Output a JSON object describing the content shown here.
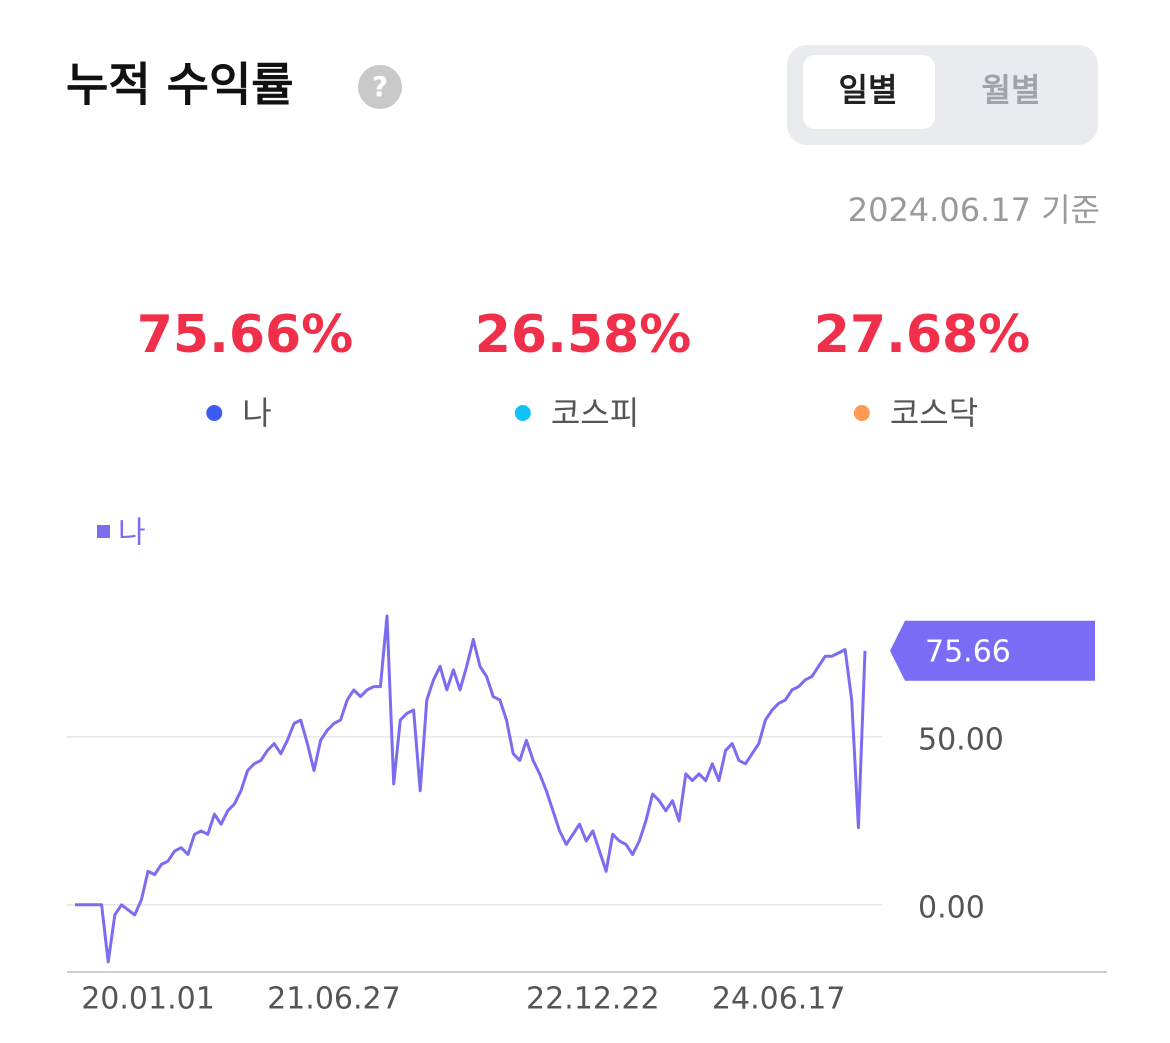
{
  "header": {
    "title": "누적 수익률",
    "help_icon": "?"
  },
  "toggle": {
    "options": [
      "일별",
      "월별"
    ],
    "active": "일별"
  },
  "as_of": "2024.06.17 기준",
  "stats": [
    {
      "value": "75.66%",
      "name": "나",
      "color": "#3d5af1"
    },
    {
      "value": "26.58%",
      "name": "코스피",
      "color": "#12c2f5"
    },
    {
      "value": "27.68%",
      "name": "코스닥",
      "color": "#ff9a52"
    }
  ],
  "chart_data": {
    "type": "line",
    "categories": [
      null,
      null,
      null,
      null,
      null,
      null,
      null,
      null,
      null,
      null,
      null,
      "20.01.01",
      null,
      null,
      null,
      null,
      null,
      null,
      null,
      null,
      null,
      null,
      null,
      null,
      null,
      null,
      null,
      null,
      null,
      null,
      null,
      null,
      null,
      null,
      null,
      null,
      null,
      null,
      null,
      "21.06.27",
      null,
      null,
      null,
      null,
      null,
      null,
      null,
      null,
      null,
      null,
      null,
      null,
      null,
      null,
      null,
      null,
      null,
      null,
      null,
      null,
      null,
      null,
      null,
      null,
      null,
      null,
      null,
      null,
      null,
      null,
      null,
      null,
      null,
      null,
      null,
      null,
      null,
      null,
      "22.12.22",
      null,
      null,
      null,
      null,
      null,
      null,
      null,
      null,
      null,
      null,
      null,
      null,
      null,
      null,
      null,
      null,
      null,
      null,
      null,
      null,
      null,
      null,
      null,
      null,
      null,
      null,
      null,
      "24.06.17",
      null,
      null,
      null,
      null,
      null,
      null,
      null,
      null,
      null,
      null,
      null,
      null,
      null
    ],
    "series": [
      {
        "name": "나",
        "color": "#7b6cf0",
        "values": [
          0,
          0,
          0,
          0,
          0,
          -17,
          -3,
          0,
          -1.5,
          -3,
          1.5,
          10,
          9,
          12,
          13,
          16,
          17,
          15,
          21,
          22,
          21,
          27,
          24,
          28,
          30,
          34,
          40,
          42,
          43,
          46,
          48,
          45,
          49,
          54,
          55,
          48,
          40,
          49,
          52,
          54,
          55,
          61,
          64,
          62,
          64,
          65,
          65,
          86,
          36,
          55,
          57,
          58,
          34,
          61,
          67,
          71,
          64,
          70,
          64,
          71,
          79,
          71,
          68,
          62,
          61,
          55,
          45,
          43,
          49,
          43,
          39,
          34,
          28,
          22,
          18,
          21,
          24,
          19,
          22,
          16,
          10,
          21,
          19,
          18,
          15,
          19,
          25,
          33,
          31,
          28,
          31,
          25,
          39,
          37,
          39,
          37,
          42,
          37,
          46,
          48,
          43,
          42,
          45,
          48,
          55,
          58,
          60,
          61,
          64,
          65,
          67,
          68,
          71,
          74,
          74,
          75,
          76,
          61,
          23,
          75.66
        ]
      }
    ],
    "ylim": [
      -20,
      90
    ],
    "yticks": [
      {
        "value": 0,
        "label": "0.00"
      },
      {
        "value": 50,
        "label": "50.00"
      }
    ],
    "grid": true,
    "last_value_callout": true
  }
}
